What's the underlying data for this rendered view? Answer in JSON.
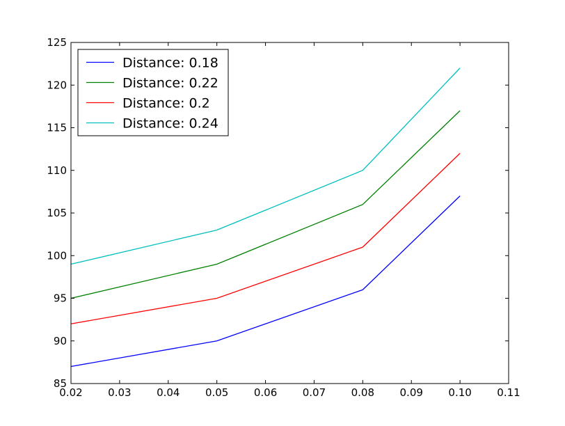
{
  "chart_data": {
    "type": "line",
    "title": "",
    "xlabel": "",
    "ylabel": "",
    "x": [
      0.02,
      0.05,
      0.08,
      0.1
    ],
    "xlim": [
      0.02,
      0.11
    ],
    "ylim": [
      85,
      125
    ],
    "xticks": [
      "0.02",
      "0.03",
      "0.04",
      "0.05",
      "0.06",
      "0.07",
      "0.08",
      "0.09",
      "0.10",
      "0.11"
    ],
    "yticks": [
      "85",
      "90",
      "95",
      "100",
      "105",
      "110",
      "115",
      "120",
      "125"
    ],
    "grid": false,
    "legend_position": "upper-left",
    "series": [
      {
        "name": "Distance: 0.18",
        "color": "#0000ff",
        "values": [
          87,
          90,
          96,
          107
        ]
      },
      {
        "name": "Distance: 0.22",
        "color": "#008000",
        "values": [
          95,
          99,
          106,
          117
        ]
      },
      {
        "name": "Distance: 0.2",
        "color": "#ff0000",
        "values": [
          92,
          95,
          101,
          112
        ]
      },
      {
        "name": "Distance: 0.24",
        "color": "#00bfbf",
        "values": [
          99,
          103,
          110,
          122
        ]
      }
    ]
  }
}
